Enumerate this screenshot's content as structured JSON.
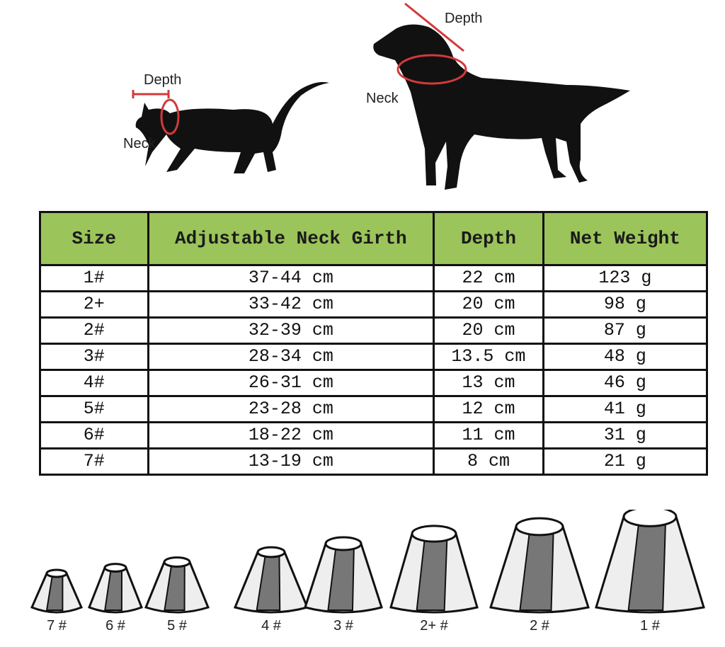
{
  "diagram": {
    "cat": {
      "depth_label": "Depth",
      "neck_label": "Neck"
    },
    "dog": {
      "depth_label": "Depth",
      "neck_label": "Neck"
    },
    "measure_color": "#d23a3a"
  },
  "table": {
    "header_color": "#9bc45a",
    "headers": [
      "Size",
      "Adjustable Neck Girth",
      "Depth",
      "Net Weight"
    ],
    "rows": [
      [
        "1#",
        "37-44 cm",
        "22 cm",
        "123 g"
      ],
      [
        "2+",
        "33-42 cm",
        "20 cm",
        "98 g"
      ],
      [
        "2#",
        "32-39 cm",
        "20 cm",
        "87 g"
      ],
      [
        "3#",
        "28-34 cm",
        "13.5 cm",
        "48 g"
      ],
      [
        "4#",
        "26-31 cm",
        "13 cm",
        "46 g"
      ],
      [
        "5#",
        "23-28 cm",
        "12 cm",
        "41 g"
      ],
      [
        "6#",
        "18-22 cm",
        "11 cm",
        "31 g"
      ],
      [
        "7#",
        "13-19 cm",
        "8 cm",
        "21 g"
      ]
    ]
  },
  "cones": [
    "7 #",
    "6 #",
    "5 #",
    "4 #",
    "3 #",
    "2+ #",
    "2 #",
    "1 #"
  ]
}
